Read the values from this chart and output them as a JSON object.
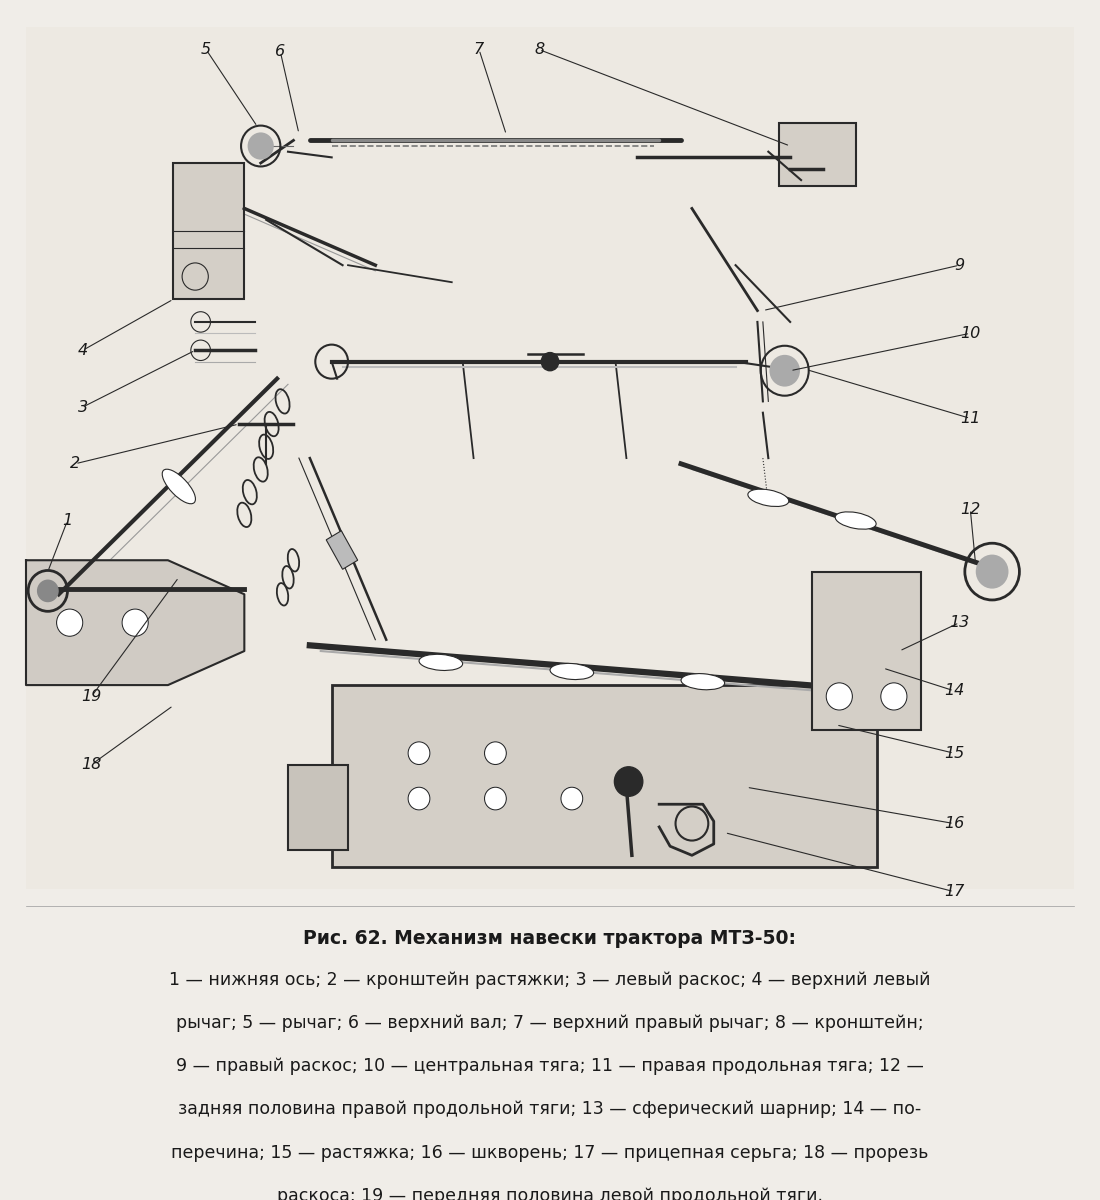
{
  "title": "Рис. 62. Механизм навески трактора МТЗ-50:",
  "caption_lines": [
    "1 — нижняя ось; 2 — кронштейн растяжки; 3 — левый раскос; 4 — верхний левый",
    "рычаг; 5 — рычаг; 6 — верхний вал; 7 — верхний правый рычаг; 8 — кронштейн;",
    "9 — правый раскос; 10 — центральная тяга; 11 — правая продольная тяга; 12 —",
    "задняя половина правой продольной тяги; 13 — сферический шарнир; 14 — по-",
    "перечина; 15 — растяжка; 16 — шкворень; 17 — прицепная серьга; 18 — прорезь",
    "раскоса; 19 — передняя половина левой продольной тяги."
  ],
  "bg_color": "#f0ede8",
  "text_color": "#1a1a1a",
  "title_fontsize": 13.5,
  "caption_fontsize": 12.5,
  "figure_width": 11.0,
  "figure_height": 12.0
}
